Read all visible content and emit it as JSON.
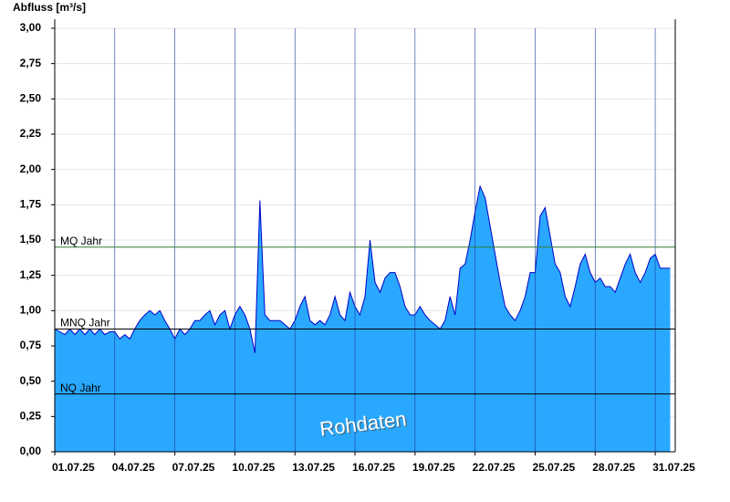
{
  "chart_data": {
    "type": "area",
    "y_label": "Abfluss [m³/s]",
    "annotation": "Rohdaten",
    "color": "#2aa8ff",
    "line_color": "#0000c8",
    "grid": true,
    "xlim": [
      1,
      32
    ],
    "ylim": [
      0,
      3
    ],
    "xticks": [
      {
        "value": 1,
        "label": "01.07.25"
      },
      {
        "value": 4,
        "label": "04.07.25"
      },
      {
        "value": 7,
        "label": "07.07.25"
      },
      {
        "value": 10,
        "label": "10.07.25"
      },
      {
        "value": 13,
        "label": "13.07.25"
      },
      {
        "value": 16,
        "label": "16.07.25"
      },
      {
        "value": 19,
        "label": "19.07.25"
      },
      {
        "value": 22,
        "label": "22.07.25"
      },
      {
        "value": 25,
        "label": "25.07.25"
      },
      {
        "value": 28,
        "label": "28.07.25"
      },
      {
        "value": 31,
        "label": "31.07.25"
      }
    ],
    "yticks": [
      {
        "value": 0,
        "label": "0,00"
      },
      {
        "value": 0.25,
        "label": "0,25"
      },
      {
        "value": 0.5,
        "label": "0,50"
      },
      {
        "value": 0.75,
        "label": "0,75"
      },
      {
        "value": 1,
        "label": "1,00"
      },
      {
        "value": 1.25,
        "label": "1,25"
      },
      {
        "value": 1.5,
        "label": "1,50"
      },
      {
        "value": 1.75,
        "label": "1,75"
      },
      {
        "value": 2,
        "label": "2,00"
      },
      {
        "value": 2.25,
        "label": "2,25"
      },
      {
        "value": 2.5,
        "label": "2,50"
      },
      {
        "value": 2.75,
        "label": "2,75"
      },
      {
        "value": 3,
        "label": "3,00"
      }
    ],
    "reference_lines": [
      {
        "label": "MQ Jahr",
        "value": 1.45,
        "color": "#2e7d32"
      },
      {
        "label": "MNQ Jahr",
        "value": 0.87,
        "color": "#000000"
      },
      {
        "label": "NQ Jahr",
        "value": 0.41,
        "color": "#000000"
      }
    ],
    "x": [
      1,
      1.25,
      1.5,
      1.75,
      2,
      2.25,
      2.5,
      2.75,
      3,
      3.25,
      3.5,
      3.75,
      4,
      4.25,
      4.5,
      4.75,
      5,
      5.25,
      5.5,
      5.75,
      6,
      6.25,
      6.5,
      6.75,
      7,
      7.25,
      7.5,
      7.75,
      8,
      8.25,
      8.5,
      8.75,
      9,
      9.25,
      9.5,
      9.75,
      10,
      10.25,
      10.5,
      10.75,
      11,
      11.25,
      11.5,
      11.75,
      12,
      12.25,
      12.5,
      12.75,
      13,
      13.25,
      13.5,
      13.75,
      14,
      14.25,
      14.5,
      14.75,
      15,
      15.25,
      15.5,
      15.75,
      16,
      16.25,
      16.5,
      16.75,
      17,
      17.25,
      17.5,
      17.75,
      18,
      18.25,
      18.5,
      18.75,
      19,
      19.25,
      19.5,
      19.75,
      20,
      20.25,
      20.5,
      20.75,
      21,
      21.25,
      21.5,
      21.75,
      22,
      22.25,
      22.5,
      22.75,
      23,
      23.25,
      23.5,
      23.75,
      24,
      24.25,
      24.5,
      24.75,
      25,
      25.25,
      25.5,
      25.75,
      26,
      26.25,
      26.5,
      26.75,
      27,
      27.25,
      27.5,
      27.75,
      28,
      28.25,
      28.5,
      28.75,
      29,
      29.25,
      29.5,
      29.75,
      30,
      30.25,
      30.5,
      30.75,
      31,
      31.25,
      31.5,
      31.75
    ],
    "values": [
      0.87,
      0.85,
      0.83,
      0.87,
      0.83,
      0.87,
      0.83,
      0.87,
      0.83,
      0.87,
      0.83,
      0.85,
      0.85,
      0.8,
      0.83,
      0.8,
      0.87,
      0.93,
      0.97,
      1.0,
      0.97,
      1.0,
      0.93,
      0.87,
      0.8,
      0.87,
      0.83,
      0.87,
      0.93,
      0.93,
      0.97,
      1.0,
      0.9,
      0.97,
      1.0,
      0.87,
      0.97,
      1.03,
      0.97,
      0.87,
      0.7,
      1.78,
      0.97,
      0.93,
      0.93,
      0.93,
      0.9,
      0.87,
      0.93,
      1.03,
      1.1,
      0.93,
      0.9,
      0.93,
      0.9,
      0.97,
      1.1,
      0.97,
      0.93,
      1.13,
      1.03,
      0.97,
      1.1,
      1.5,
      1.2,
      1.13,
      1.23,
      1.27,
      1.27,
      1.17,
      1.03,
      0.97,
      0.97,
      1.03,
      0.97,
      0.93,
      0.9,
      0.87,
      0.93,
      1.1,
      0.97,
      1.3,
      1.33,
      1.5,
      1.7,
      1.88,
      1.8,
      1.6,
      1.4,
      1.2,
      1.03,
      0.97,
      0.93,
      1.0,
      1.1,
      1.27,
      1.27,
      1.67,
      1.73,
      1.53,
      1.33,
      1.27,
      1.1,
      1.03,
      1.17,
      1.33,
      1.4,
      1.27,
      1.2,
      1.23,
      1.17,
      1.17,
      1.13,
      1.23,
      1.33,
      1.4,
      1.27,
      1.2,
      1.27,
      1.37,
      1.4,
      1.3,
      1.3,
      1.3
    ]
  }
}
